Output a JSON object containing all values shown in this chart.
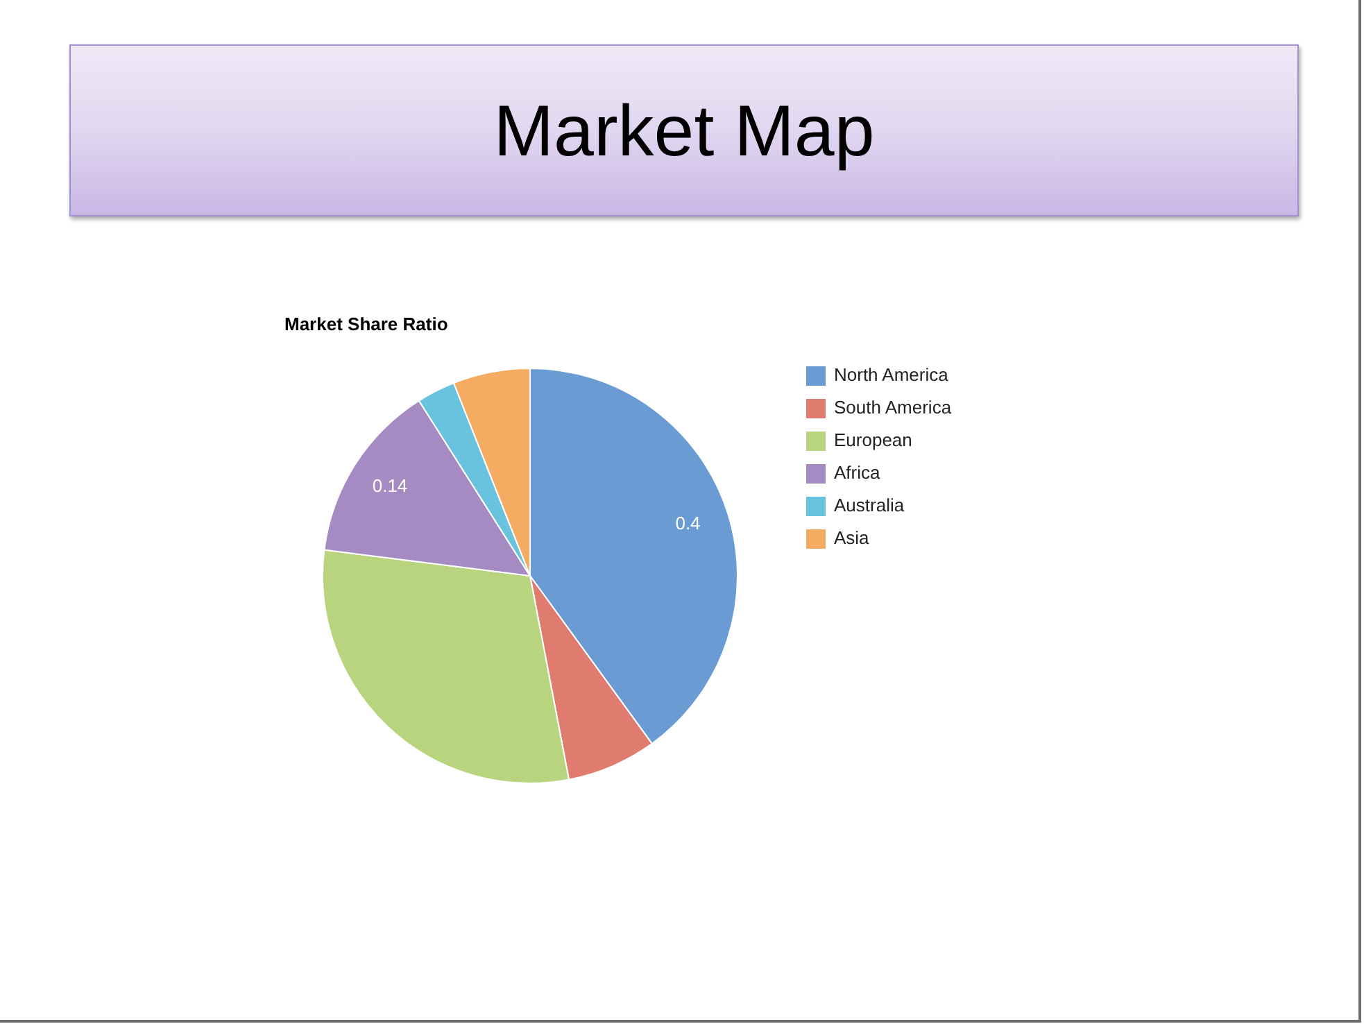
{
  "chart_data": {
    "type": "pie",
    "title": "Market Map",
    "subtitle": "Market Share Ratio",
    "categories": [
      "North America",
      "South America",
      "European",
      "Africa",
      "Australia",
      "Asia"
    ],
    "values": [
      0.4,
      0.07,
      0.3,
      0.14,
      0.03,
      0.06
    ],
    "colors": [
      "#6a9bd3",
      "#e07b70",
      "#b8d47e",
      "#a68bc3",
      "#69c3df",
      "#f4ab62"
    ],
    "value_labels": [
      "0.4",
      null,
      null,
      "0.14",
      null,
      null
    ],
    "legend": "right"
  }
}
